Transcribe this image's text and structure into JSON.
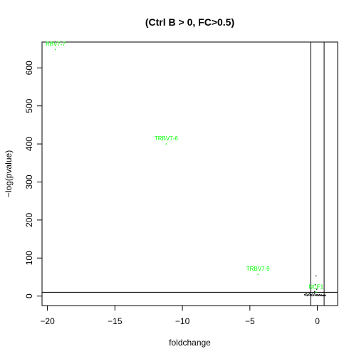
{
  "chart_data": {
    "type": "scatter",
    "title": "(Ctrl B > 0, FC>0.5)",
    "xlabel": "foldchange",
    "ylabel": "−log(pvalue)",
    "xlim": [
      -20.4,
      1.5
    ],
    "ylim": [
      -25,
      668
    ],
    "x_ticks": [
      -20,
      -15,
      -10,
      -5,
      0
    ],
    "x_tick_labels": [
      "−20",
      "−15",
      "−10",
      "−5",
      "0"
    ],
    "y_ticks": [
      0,
      100,
      200,
      300,
      400,
      500,
      600
    ],
    "y_tick_labels": [
      "0",
      "100",
      "200",
      "300",
      "400",
      "500",
      "600"
    ],
    "grid": false,
    "thresholds": {
      "foldchange": [
        -0.5,
        0.5
      ],
      "neg_log_pvalue": 10
    },
    "colors": {
      "highlight": "#00ff00",
      "points": "#000000",
      "lines": "#000000"
    },
    "highlighted_points": [
      {
        "x": -19.4,
        "y": 648,
        "label": "RBV7-7"
      },
      {
        "x": -11.2,
        "y": 400,
        "label": "TRBV7-6"
      },
      {
        "x": -4.4,
        "y": 57,
        "label": "TRBV7-9"
      },
      {
        "x": -0.1,
        "y": 10,
        "label": "NCF1"
      }
    ],
    "background_points": [
      {
        "x": -0.95,
        "y": 3.5
      },
      {
        "x": -0.9,
        "y": 5.0
      },
      {
        "x": -0.85,
        "y": 2.0
      },
      {
        "x": -0.8,
        "y": 6.0
      },
      {
        "x": -0.75,
        "y": 1.5
      },
      {
        "x": -0.7,
        "y": 4.0
      },
      {
        "x": -0.65,
        "y": 3.0
      },
      {
        "x": -0.6,
        "y": 7.0
      },
      {
        "x": -0.55,
        "y": 2.5
      },
      {
        "x": -0.5,
        "y": 4.5
      },
      {
        "x": -0.45,
        "y": 3.5
      },
      {
        "x": -0.4,
        "y": 1.0
      },
      {
        "x": -0.35,
        "y": 5.5
      },
      {
        "x": -0.3,
        "y": 2.0
      },
      {
        "x": -0.25,
        "y": 3.0
      },
      {
        "x": -0.2,
        "y": 6.5
      },
      {
        "x": -0.15,
        "y": 1.5
      },
      {
        "x": -0.1,
        "y": 4.0
      },
      {
        "x": -0.05,
        "y": 2.5
      },
      {
        "x": 0.0,
        "y": 3.5
      },
      {
        "x": 0.05,
        "y": 1.0
      },
      {
        "x": 0.1,
        "y": 2.0
      },
      {
        "x": 0.15,
        "y": 4.0
      },
      {
        "x": 0.2,
        "y": 1.5
      },
      {
        "x": 0.25,
        "y": 2.5
      },
      {
        "x": 0.3,
        "y": 3.0
      },
      {
        "x": 0.35,
        "y": 0.8
      },
      {
        "x": 0.4,
        "y": 1.8
      },
      {
        "x": 0.45,
        "y": 2.2
      },
      {
        "x": 0.5,
        "y": 1.2
      },
      {
        "x": 0.55,
        "y": 2.8
      },
      {
        "x": 0.6,
        "y": 1.0
      },
      {
        "x": -0.1,
        "y": 53
      },
      {
        "x": -0.15,
        "y": 30
      },
      {
        "x": -0.05,
        "y": 18
      },
      {
        "x": -0.2,
        "y": 12
      }
    ]
  }
}
